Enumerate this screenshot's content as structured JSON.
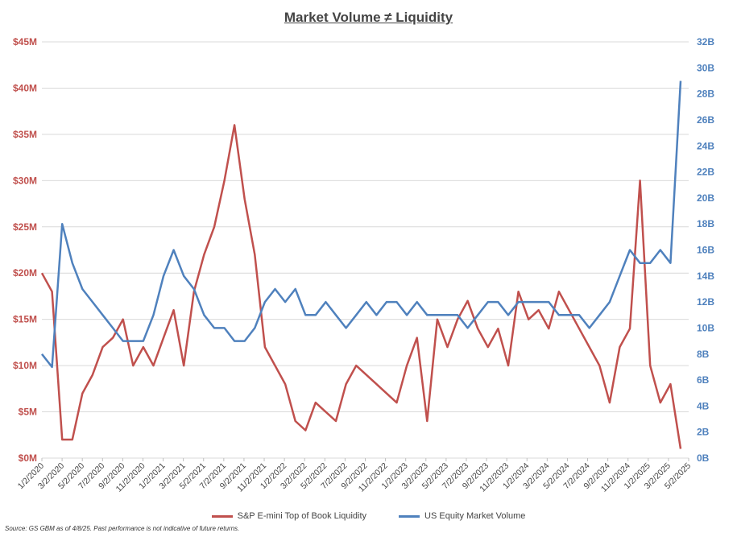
{
  "chart_data": {
    "type": "line",
    "title": "Market Volume ≠ Liquidity",
    "x_tick_labels": [
      "1/2/2020",
      "3/2/2020",
      "5/2/2020",
      "7/2/2020",
      "9/2/2020",
      "11/2/2020",
      "1/2/2021",
      "3/2/2021",
      "5/2/2021",
      "7/2/2021",
      "9/2/2021",
      "11/2/2021",
      "1/2/2022",
      "3/2/2022",
      "5/2/2022",
      "7/2/2022",
      "9/2/2022",
      "11/2/2022",
      "1/2/2023",
      "3/2/2023",
      "5/2/2023",
      "7/2/2023",
      "9/2/2023",
      "11/2/2023",
      "1/2/2024",
      "3/2/2024",
      "5/2/2024",
      "7/2/2024",
      "9/2/2024",
      "11/2/2024",
      "1/2/2025",
      "3/2/2025",
      "5/2/2025"
    ],
    "x_unit": "months since Jan 2020",
    "xlim": [
      0,
      64
    ],
    "left_axis": {
      "ylim": [
        0,
        45
      ],
      "tick_labels": [
        "$0M",
        "$5M",
        "$10M",
        "$15M",
        "$20M",
        "$25M",
        "$30M",
        "$35M",
        "$40M",
        "$45M"
      ],
      "color": "#c0504d"
    },
    "right_axis": {
      "ylim": [
        0,
        32
      ],
      "tick_labels": [
        "0B",
        "2B",
        "4B",
        "6B",
        "8B",
        "10B",
        "12B",
        "14B",
        "16B",
        "18B",
        "20B",
        "22B",
        "24B",
        "26B",
        "28B",
        "30B",
        "32B"
      ],
      "color": "#4f81bd"
    },
    "grid": true,
    "legend_position": "bottom",
    "series": [
      {
        "name": "S&P E-mini Top of Book Liquidity",
        "axis": "left",
        "color": "#c0504d",
        "values": [
          20,
          18,
          2,
          2,
          7,
          9,
          12,
          13,
          15,
          10,
          12,
          10,
          13,
          16,
          10,
          18,
          22,
          25,
          30,
          36,
          28,
          22,
          12,
          10,
          8,
          4,
          3,
          6,
          5,
          4,
          8,
          10,
          9,
          8,
          7,
          6,
          10,
          13,
          4,
          15,
          12,
          15,
          17,
          14,
          12,
          14,
          10,
          18,
          15,
          16,
          14,
          18,
          16,
          14,
          12,
          10,
          6,
          12,
          14,
          30,
          10,
          6,
          8,
          1
        ]
      },
      {
        "name": "US Equity Market Volume",
        "axis": "right",
        "color": "#4f81bd",
        "values": [
          8,
          7,
          18,
          15,
          13,
          12,
          11,
          10,
          9,
          9,
          9,
          11,
          14,
          16,
          14,
          13,
          11,
          10,
          10,
          9,
          9,
          10,
          12,
          13,
          12,
          13,
          11,
          11,
          12,
          11,
          10,
          11,
          12,
          11,
          12,
          12,
          11,
          12,
          11,
          11,
          11,
          11,
          10,
          11,
          12,
          12,
          11,
          12,
          12,
          12,
          12,
          11,
          11,
          11,
          10,
          11,
          12,
          14,
          16,
          15,
          15,
          16,
          15,
          29
        ]
      }
    ]
  },
  "source": "Source: GS GBM as of 4/8/25. Past performance is not indicative of future returns."
}
